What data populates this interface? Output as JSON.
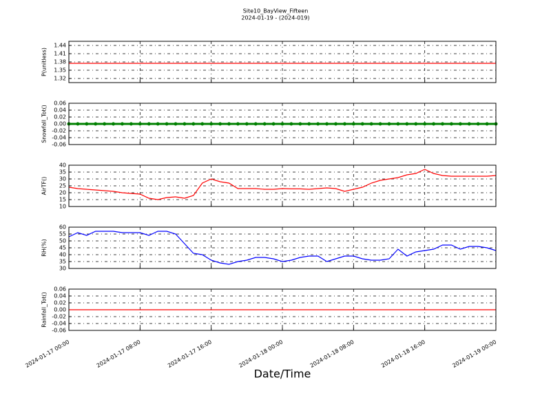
{
  "title": "Site10_BayView_Fifteen",
  "subtitle": "2024-01-19 - (2024-019)",
  "xlabel": "Date/Time",
  "xlim": [
    "2024-01-17 00:00",
    "2024-01-19 00:00"
  ],
  "xticks": [
    "2024-01-17 00:00",
    "2024-01-17 08:00",
    "2024-01-17 16:00",
    "2024-01-18 00:00",
    "2024-01-18 08:00",
    "2024-01-18 16:00",
    "2024-01-19 00:00"
  ],
  "chart_data": [
    {
      "type": "line",
      "ylabel": "P(unitless)",
      "ylim": [
        1.305,
        1.455
      ],
      "yticks": [
        1.32,
        1.35,
        1.38,
        1.41,
        1.44
      ],
      "grid": true,
      "x": [
        "2024-01-17 00:00",
        "2024-01-19 00:00"
      ],
      "series": [
        {
          "color": "#ff0000",
          "values": [
            1.375,
            1.375
          ]
        }
      ]
    },
    {
      "type": "scatter",
      "ylabel": "Snowfall_Tot()",
      "ylim": [
        -0.06,
        0.06
      ],
      "yticks": [
        0.06,
        0.04,
        0.02,
        {
          "value": 0,
          "label": "0.00"
        },
        -0.02,
        -0.04,
        -0.06
      ],
      "grid": true,
      "x": [
        "2024-01-17 00:00",
        "2024-01-17 01:00",
        "2024-01-17 02:00",
        "2024-01-17 03:00",
        "2024-01-17 04:00",
        "2024-01-17 05:00",
        "2024-01-17 06:00",
        "2024-01-17 07:00",
        "2024-01-17 08:00",
        "2024-01-17 09:00",
        "2024-01-17 10:00",
        "2024-01-17 11:00",
        "2024-01-17 12:00",
        "2024-01-17 13:00",
        "2024-01-17 14:00",
        "2024-01-17 15:00",
        "2024-01-17 16:00",
        "2024-01-17 17:00",
        "2024-01-17 18:00",
        "2024-01-17 19:00",
        "2024-01-17 20:00",
        "2024-01-17 21:00",
        "2024-01-17 22:00",
        "2024-01-17 23:00",
        "2024-01-18 00:00",
        "2024-01-18 01:00",
        "2024-01-18 02:00",
        "2024-01-18 03:00",
        "2024-01-18 04:00",
        "2024-01-18 05:00",
        "2024-01-18 06:00",
        "2024-01-18 07:00",
        "2024-01-18 08:00",
        "2024-01-18 09:00",
        "2024-01-18 10:00",
        "2024-01-18 11:00",
        "2024-01-18 12:00",
        "2024-01-18 13:00",
        "2024-01-18 14:00",
        "2024-01-18 15:00",
        "2024-01-18 16:00",
        "2024-01-18 17:00",
        "2024-01-18 18:00",
        "2024-01-18 19:00",
        "2024-01-18 20:00",
        "2024-01-18 21:00",
        "2024-01-18 22:00",
        "2024-01-18 23:00",
        "2024-01-19 00:00"
      ],
      "series": [
        {
          "color": "#008000",
          "values": [
            0,
            0,
            0,
            0,
            0,
            0,
            0,
            0,
            0,
            0,
            0,
            0,
            0,
            0,
            0,
            0,
            0,
            0,
            0,
            0,
            0,
            0,
            0,
            0,
            0,
            0,
            0,
            0,
            0,
            0,
            0,
            0,
            0,
            0,
            0,
            0,
            0,
            0,
            0,
            0,
            0,
            0,
            0,
            0,
            0,
            0,
            0,
            0,
            0
          ]
        }
      ]
    },
    {
      "type": "line",
      "ylabel": "AirTF()",
      "ylim": [
        10,
        40
      ],
      "yticks": [
        10,
        15,
        20,
        25,
        30,
        35,
        40
      ],
      "grid": true,
      "x": [
        "2024-01-17 00:00",
        "2024-01-17 01:00",
        "2024-01-17 02:00",
        "2024-01-17 03:00",
        "2024-01-17 04:00",
        "2024-01-17 05:00",
        "2024-01-17 06:00",
        "2024-01-17 07:00",
        "2024-01-17 08:00",
        "2024-01-17 09:00",
        "2024-01-17 10:00",
        "2024-01-17 11:00",
        "2024-01-17 12:00",
        "2024-01-17 13:00",
        "2024-01-17 14:00",
        "2024-01-17 15:00",
        "2024-01-17 16:00",
        "2024-01-17 17:00",
        "2024-01-17 18:00",
        "2024-01-17 19:00",
        "2024-01-17 20:00",
        "2024-01-17 21:00",
        "2024-01-17 22:00",
        "2024-01-17 23:00",
        "2024-01-18 00:00",
        "2024-01-18 01:00",
        "2024-01-18 02:00",
        "2024-01-18 03:00",
        "2024-01-18 04:00",
        "2024-01-18 05:00",
        "2024-01-18 06:00",
        "2024-01-18 07:00",
        "2024-01-18 08:00",
        "2024-01-18 09:00",
        "2024-01-18 10:00",
        "2024-01-18 11:00",
        "2024-01-18 12:00",
        "2024-01-18 13:00",
        "2024-01-18 14:00",
        "2024-01-18 15:00",
        "2024-01-18 16:00",
        "2024-01-18 17:00",
        "2024-01-18 18:00",
        "2024-01-18 19:00",
        "2024-01-18 20:00",
        "2024-01-18 21:00",
        "2024-01-18 22:00",
        "2024-01-18 23:00",
        "2024-01-19 00:00"
      ],
      "series": [
        {
          "color": "#ff0000",
          "values": [
            24,
            23,
            22.5,
            22,
            21.5,
            21,
            20,
            19.5,
            19,
            16,
            15,
            16.5,
            17,
            16,
            18,
            27,
            30,
            28,
            27,
            23,
            23,
            23,
            22.5,
            22.5,
            23,
            22.8,
            22.8,
            22.5,
            23,
            23.5,
            23,
            21,
            22.5,
            24,
            27,
            29,
            30,
            31,
            33,
            34,
            37,
            34,
            32.5,
            32,
            32,
            32,
            32,
            32,
            32.5
          ]
        }
      ]
    },
    {
      "type": "line",
      "ylabel": "RH(%)",
      "ylim": [
        30,
        60
      ],
      "yticks": [
        30,
        35,
        40,
        45,
        50,
        55,
        60
      ],
      "grid": true,
      "x": [
        "2024-01-17 00:00",
        "2024-01-17 01:00",
        "2024-01-17 02:00",
        "2024-01-17 03:00",
        "2024-01-17 04:00",
        "2024-01-17 05:00",
        "2024-01-17 06:00",
        "2024-01-17 07:00",
        "2024-01-17 08:00",
        "2024-01-17 09:00",
        "2024-01-17 10:00",
        "2024-01-17 11:00",
        "2024-01-17 12:00",
        "2024-01-17 13:00",
        "2024-01-17 14:00",
        "2024-01-17 15:00",
        "2024-01-17 16:00",
        "2024-01-17 17:00",
        "2024-01-17 18:00",
        "2024-01-17 19:00",
        "2024-01-17 20:00",
        "2024-01-17 21:00",
        "2024-01-17 22:00",
        "2024-01-17 23:00",
        "2024-01-18 00:00",
        "2024-01-18 01:00",
        "2024-01-18 02:00",
        "2024-01-18 03:00",
        "2024-01-18 04:00",
        "2024-01-18 05:00",
        "2024-01-18 06:00",
        "2024-01-18 07:00",
        "2024-01-18 08:00",
        "2024-01-18 09:00",
        "2024-01-18 10:00",
        "2024-01-18 11:00",
        "2024-01-18 12:00",
        "2024-01-18 13:00",
        "2024-01-18 14:00",
        "2024-01-18 15:00",
        "2024-01-18 16:00",
        "2024-01-18 17:00",
        "2024-01-18 18:00",
        "2024-01-18 19:00",
        "2024-01-18 20:00",
        "2024-01-18 21:00",
        "2024-01-18 22:00",
        "2024-01-18 23:00",
        "2024-01-19 00:00"
      ],
      "series": [
        {
          "color": "#0000ff",
          "values": [
            53,
            56,
            54,
            57,
            57,
            57,
            56,
            56,
            56,
            54,
            57,
            57,
            55,
            48,
            41,
            40,
            36,
            34,
            33,
            35,
            36,
            38,
            38,
            37,
            35,
            36,
            38,
            39,
            39,
            35,
            37,
            39,
            39,
            37,
            36,
            36,
            37,
            44,
            39,
            42,
            43,
            44,
            47,
            47,
            44,
            46,
            46,
            45,
            43
          ]
        }
      ]
    },
    {
      "type": "line",
      "ylabel": "Rainfall_Tot()",
      "ylim": [
        -0.06,
        0.06
      ],
      "yticks": [
        0.06,
        0.04,
        0.02,
        {
          "value": 0,
          "label": "0.00"
        },
        -0.02,
        -0.04,
        -0.06
      ],
      "grid": true,
      "x": [
        "2024-01-17 00:00",
        "2024-01-19 00:00"
      ],
      "series": [
        {
          "color": "#ff0000",
          "values": [
            0,
            0
          ]
        }
      ]
    }
  ]
}
